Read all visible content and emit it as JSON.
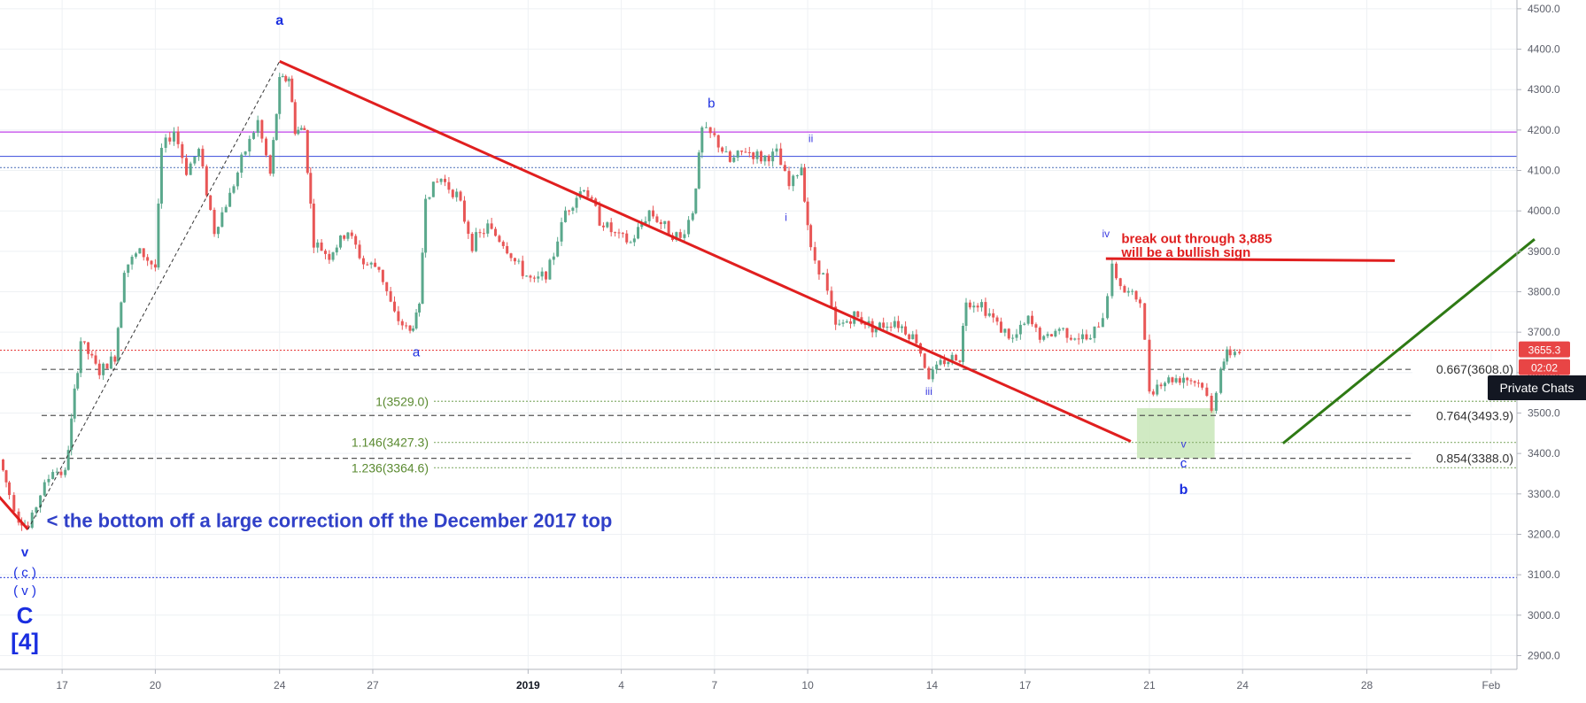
{
  "chart_data": {
    "type": "candlestick",
    "y_axis": {
      "ticks": [
        "2900.0",
        "3000.0",
        "3100.0",
        "3200.0",
        "3300.0",
        "3400.0",
        "3500.0",
        "3600.0",
        "3700.0",
        "3800.0",
        "3900.0",
        "4000.0",
        "4100.0",
        "4200.0",
        "4300.0",
        "4400.0",
        "4500.0"
      ],
      "range": [
        2890,
        4515
      ]
    },
    "x_axis": {
      "ticks": [
        {
          "label": "17",
          "day": 17,
          "bold": false
        },
        {
          "label": "20",
          "day": 20,
          "bold": false
        },
        {
          "label": "24",
          "day": 24,
          "bold": false
        },
        {
          "label": "27",
          "day": 27,
          "bold": false
        },
        {
          "label": "2019",
          "day": 32,
          "bold": true
        },
        {
          "label": "4",
          "day": 35,
          "bold": false
        },
        {
          "label": "7",
          "day": 38,
          "bold": false
        },
        {
          "label": "10",
          "day": 41,
          "bold": false
        },
        {
          "label": "14",
          "day": 45,
          "bold": false
        },
        {
          "label": "17",
          "day": 48,
          "bold": false
        },
        {
          "label": "21",
          "day": 52,
          "bold": false
        },
        {
          "label": "24",
          "day": 55,
          "bold": false
        },
        {
          "label": "28",
          "day": 59,
          "bold": false
        },
        {
          "label": "Feb",
          "day": 63,
          "bold": false
        }
      ],
      "unit": "days (Dec 2018 numbering, Jan = 31 + day)"
    },
    "price_path": [
      {
        "day": 15.0,
        "price": 3385
      },
      {
        "day": 15.3,
        "price": 3300
      },
      {
        "day": 15.6,
        "price": 3240
      },
      {
        "day": 15.9,
        "price": 3215
      },
      {
        "day": 16.3,
        "price": 3300
      },
      {
        "day": 16.7,
        "price": 3360
      },
      {
        "day": 17.1,
        "price": 3350
      },
      {
        "day": 17.3,
        "price": 3480
      },
      {
        "day": 17.6,
        "price": 3680
      },
      {
        "day": 18.2,
        "price": 3600
      },
      {
        "day": 18.7,
        "price": 3640
      },
      {
        "day": 19.0,
        "price": 3860
      },
      {
        "day": 19.5,
        "price": 3900
      },
      {
        "day": 20.0,
        "price": 3860
      },
      {
        "day": 20.2,
        "price": 4150
      },
      {
        "day": 20.6,
        "price": 4200
      },
      {
        "day": 21.0,
        "price": 4100
      },
      {
        "day": 21.4,
        "price": 4150
      },
      {
        "day": 21.9,
        "price": 3950
      },
      {
        "day": 22.4,
        "price": 4040
      },
      {
        "day": 22.9,
        "price": 4150
      },
      {
        "day": 23.3,
        "price": 4220
      },
      {
        "day": 23.7,
        "price": 4090
      },
      {
        "day": 24.0,
        "price": 4320
      },
      {
        "day": 24.3,
        "price": 4330
      },
      {
        "day": 24.5,
        "price": 4200
      },
      {
        "day": 24.8,
        "price": 4200
      },
      {
        "day": 25.1,
        "price": 3920
      },
      {
        "day": 25.6,
        "price": 3890
      },
      {
        "day": 26.2,
        "price": 3950
      },
      {
        "day": 26.7,
        "price": 3870
      },
      {
        "day": 27.2,
        "price": 3860
      },
      {
        "day": 27.7,
        "price": 3740
      },
      {
        "day": 28.2,
        "price": 3700
      },
      {
        "day": 28.5,
        "price": 3760
      },
      {
        "day": 28.7,
        "price": 4040
      },
      {
        "day": 29.2,
        "price": 4080
      },
      {
        "day": 29.7,
        "price": 4040
      },
      {
        "day": 30.2,
        "price": 3920
      },
      {
        "day": 30.7,
        "price": 3960
      },
      {
        "day": 31.2,
        "price": 3920
      },
      {
        "day": 31.7,
        "price": 3860
      },
      {
        "day": 32.2,
        "price": 3820
      },
      {
        "day": 32.7,
        "price": 3860
      },
      {
        "day": 33.2,
        "price": 4000
      },
      {
        "day": 33.8,
        "price": 4060
      },
      {
        "day": 34.3,
        "price": 3980
      },
      {
        "day": 34.8,
        "price": 3940
      },
      {
        "day": 35.3,
        "price": 3920
      },
      {
        "day": 35.9,
        "price": 4000
      },
      {
        "day": 36.4,
        "price": 3960
      },
      {
        "day": 36.9,
        "price": 3930
      },
      {
        "day": 37.3,
        "price": 4000
      },
      {
        "day": 37.6,
        "price": 4200
      },
      {
        "day": 38.0,
        "price": 4180
      },
      {
        "day": 38.5,
        "price": 4120
      },
      {
        "day": 39.0,
        "price": 4150
      },
      {
        "day": 39.5,
        "price": 4130
      },
      {
        "day": 40.0,
        "price": 4140
      },
      {
        "day": 40.4,
        "price": 4060
      },
      {
        "day": 40.8,
        "price": 4110
      },
      {
        "day": 41.1,
        "price": 3900
      },
      {
        "day": 41.5,
        "price": 3840
      },
      {
        "day": 41.9,
        "price": 3710
      },
      {
        "day": 42.5,
        "price": 3740
      },
      {
        "day": 43.2,
        "price": 3710
      },
      {
        "day": 43.8,
        "price": 3730
      },
      {
        "day": 44.5,
        "price": 3680
      },
      {
        "day": 44.9,
        "price": 3590
      },
      {
        "day": 45.4,
        "price": 3630
      },
      {
        "day": 45.9,
        "price": 3640
      },
      {
        "day": 46.1,
        "price": 3780
      },
      {
        "day": 46.6,
        "price": 3770
      },
      {
        "day": 47.1,
        "price": 3720
      },
      {
        "day": 47.6,
        "price": 3680
      },
      {
        "day": 48.1,
        "price": 3730
      },
      {
        "day": 48.6,
        "price": 3680
      },
      {
        "day": 49.1,
        "price": 3710
      },
      {
        "day": 49.6,
        "price": 3690
      },
      {
        "day": 50.1,
        "price": 3680
      },
      {
        "day": 50.5,
        "price": 3740
      },
      {
        "day": 50.8,
        "price": 3860
      },
      {
        "day": 51.2,
        "price": 3800
      },
      {
        "day": 51.7,
        "price": 3780
      },
      {
        "day": 52.0,
        "price": 3560
      },
      {
        "day": 52.5,
        "price": 3580
      },
      {
        "day": 53.1,
        "price": 3590
      },
      {
        "day": 53.7,
        "price": 3570
      },
      {
        "day": 54.0,
        "price": 3500
      },
      {
        "day": 54.3,
        "price": 3620
      },
      {
        "day": 54.6,
        "price": 3650
      },
      {
        "day": 54.9,
        "price": 3655
      }
    ],
    "horizontal_levels": [
      {
        "price": 4195,
        "color": "#c040e8",
        "style": "solid"
      },
      {
        "price": 4135,
        "color": "#5060e0",
        "style": "solid"
      },
      {
        "price": 4107,
        "color": "#6080c0",
        "style": "dotted"
      },
      {
        "price": 3655.3,
        "color": "#e84545",
        "style": "dotted"
      },
      {
        "price": 3608,
        "color": "#555555",
        "style": "dashed",
        "label": "0.667(3608.0)"
      },
      {
        "price": 3493.9,
        "color": "#555555",
        "style": "dashed",
        "label": "0.764(3493.9)"
      },
      {
        "price": 3388,
        "color": "#555555",
        "style": "dashed",
        "label": "0.854(3388.0)"
      },
      {
        "price": 3529,
        "color": "#8ab070",
        "style": "dotted",
        "label": "1(3529.0)"
      },
      {
        "price": 3427.3,
        "color": "#8ab070",
        "style": "dotted",
        "label": "1.146(3427.3)"
      },
      {
        "price": 3364.6,
        "color": "#8ab070",
        "style": "dotted",
        "label": "1.236(3364.6)"
      },
      {
        "price": 3093,
        "color": "#5060e0",
        "style": "dotted"
      }
    ],
    "trendlines": [
      {
        "from": {
          "day": 24.0,
          "price": 4370
        },
        "to": {
          "day": 51.4,
          "price": 3430
        },
        "color": "#e01f1f",
        "style": "solid"
      },
      {
        "from": {
          "day": 14.8,
          "price": 3308
        },
        "to": {
          "day": 15.9,
          "price": 3212
        },
        "color": "#e01f1f",
        "style": "solid"
      },
      {
        "from": {
          "day": 50.6,
          "price": 3882
        },
        "to": {
          "day": 59.9,
          "price": 3877
        },
        "color": "#e01f1f",
        "style": "solid"
      },
      {
        "from": {
          "day": 56.3,
          "price": 3425
        },
        "to": {
          "day": 64.4,
          "price": 3930
        },
        "color": "#2e7a14",
        "style": "solid"
      },
      {
        "from": {
          "day": 15.9,
          "price": 3212
        },
        "to": {
          "day": 24.0,
          "price": 4370
        },
        "color": "#333333",
        "style": "dashed"
      }
    ],
    "zone": {
      "from_day": 51.6,
      "to_day": 54.1,
      "from_price": 3388,
      "to_price": 3512,
      "color": "#c8e6b8"
    },
    "price_label": {
      "value": "3655.3",
      "countdown": "02:02",
      "color": "#e84545"
    },
    "annotations": [
      {
        "text": "a",
        "day": 24.0,
        "price": 4460,
        "color": "#1a2ee0",
        "size": 16,
        "bold": true
      },
      {
        "text": "a",
        "day": 28.4,
        "price": 3640,
        "color": "#1a2ee0",
        "size": 15,
        "bold": false
      },
      {
        "text": "b",
        "day": 37.9,
        "price": 4255,
        "color": "#1a2ee0",
        "size": 15,
        "bold": false
      },
      {
        "text": "ii",
        "day": 41.1,
        "price": 4170,
        "color": "#3a3ae0",
        "size": 12,
        "bold": false
      },
      {
        "text": "i",
        "day": 40.3,
        "price": 3975,
        "color": "#3a3ae0",
        "size": 12,
        "bold": false
      },
      {
        "text": "iii",
        "day": 44.9,
        "price": 3545,
        "color": "#3a3ae0",
        "size": 12,
        "bold": false
      },
      {
        "text": "iv",
        "day": 50.6,
        "price": 3935,
        "color": "#3a3ae0",
        "size": 12,
        "bold": false
      },
      {
        "text": "v",
        "day": 53.1,
        "price": 3415,
        "color": "#3a3ae0",
        "size": 12,
        "bold": false
      },
      {
        "text": "c",
        "day": 53.1,
        "price": 3365,
        "color": "#1a2ee0",
        "size": 15,
        "bold": false
      },
      {
        "text": "b",
        "day": 53.1,
        "price": 3300,
        "color": "#1a2ee0",
        "size": 16,
        "bold": true
      },
      {
        "text": "v",
        "day": 15.8,
        "price": 3145,
        "color": "#1a2ee0",
        "size": 15,
        "bold": true
      },
      {
        "text": "( c )",
        "day": 15.8,
        "price": 3095,
        "color": "#1a2ee0",
        "size": 15,
        "bold": false
      },
      {
        "text": "( v )",
        "day": 15.8,
        "price": 3050,
        "color": "#1a2ee0",
        "size": 15,
        "bold": false
      },
      {
        "text": "C",
        "day": 15.8,
        "price": 2980,
        "color": "#1a2ee0",
        "size": 26,
        "bold": true
      },
      {
        "text": "[4]",
        "day": 15.8,
        "price": 2915,
        "color": "#1a2ee0",
        "size": 26,
        "bold": true
      }
    ],
    "text_notes": [
      {
        "text": "< the bottom off a large correction off the December 2017 top",
        "day": 16.5,
        "price": 3218,
        "color": "#3040c8",
        "size": 22
      },
      {
        "text": "break out through 3,885",
        "day": 51.1,
        "price": 3920,
        "color": "#e01f1f",
        "size": 15
      },
      {
        "text": "will be a bullish sign",
        "day": 51.1,
        "price": 3887,
        "color": "#e01f1f",
        "size": 15
      }
    ],
    "title": "",
    "xlabel": "",
    "ylabel": "",
    "grid": true
  },
  "widget": {
    "private_chats_label": "Private Chats"
  },
  "colors": {
    "up_candle": "#5aa88c",
    "down_candle": "#e85656",
    "grid": "#eef1f4",
    "axis_text": "#5d606b"
  }
}
